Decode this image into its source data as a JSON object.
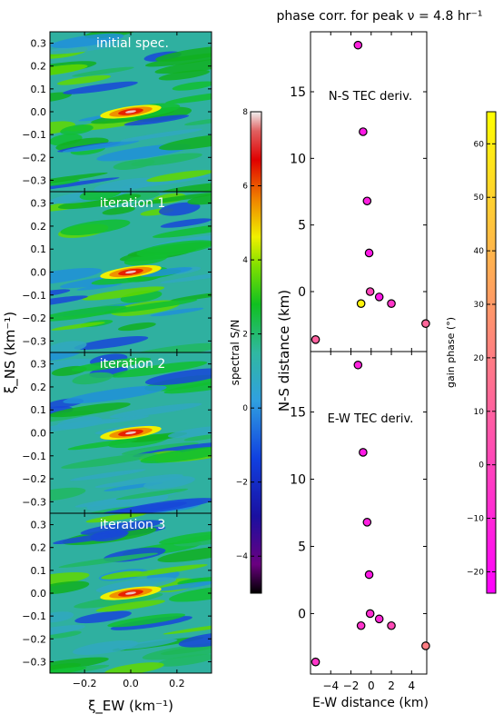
{
  "chart_data": {
    "type": "heatmap",
    "title": "phase corr. for peak ν = 4.8 hr⁻¹",
    "left_panels": {
      "xlabel": "ξ_EW (km⁻¹)",
      "ylabel": "ξ_NS (km⁻¹)",
      "xlim": [
        -0.35,
        0.35
      ],
      "ylim": [
        -0.35,
        0.35
      ],
      "xticks": [
        "−0.2",
        "0.0",
        "0.2"
      ],
      "yticks": [
        "0.3",
        "0.2",
        "0.1",
        "0.0",
        "−0.1",
        "−0.2",
        "−0.3"
      ],
      "panels": [
        {
          "label": "initial spec.",
          "peak_sn": 7.2,
          "peak_xi_ew": 0.0,
          "peak_xi_ns": 0.0
        },
        {
          "label": "iteration 1",
          "peak_sn": 7.2,
          "peak_xi_ew": 0.0,
          "peak_xi_ns": 0.0
        },
        {
          "label": "iteration 2",
          "peak_sn": 7.2,
          "peak_xi_ew": 0.0,
          "peak_xi_ns": 0.0
        },
        {
          "label": "iteration 3",
          "peak_sn": 7.2,
          "peak_xi_ew": 0.0,
          "peak_xi_ns": 0.0
        }
      ]
    },
    "colorbar_sn": {
      "label": "spectral S/N",
      "range": [
        -5,
        8
      ],
      "ticks": [
        "8",
        "6",
        "4",
        "2",
        "0",
        "−2",
        "−4"
      ]
    },
    "right_panels": {
      "xlabel": "E-W distance (km)",
      "ylabel": "N-S distance (km)",
      "xlim": [
        -6,
        5.5
      ],
      "ylim": [
        -4.5,
        19.5
      ],
      "xticks": [
        "−4",
        "−2",
        "0",
        "2",
        "4"
      ],
      "yticks": [
        "15",
        "10",
        "5",
        "0"
      ],
      "panels": [
        {
          "label": "N-S TEC deriv.",
          "points": [
            {
              "x": -1.3,
              "y": 18.5,
              "phase": -12
            },
            {
              "x": -0.8,
              "y": 12.0,
              "phase": -15
            },
            {
              "x": -0.4,
              "y": 6.8,
              "phase": -13
            },
            {
              "x": -0.2,
              "y": 2.9,
              "phase": -15
            },
            {
              "x": -0.1,
              "y": 0.0,
              "phase": 0
            },
            {
              "x": 0.8,
              "y": -0.4,
              "phase": -16
            },
            {
              "x": 2.0,
              "y": -0.9,
              "phase": -5
            },
            {
              "x": -1.0,
              "y": -0.9,
              "phase": 62
            },
            {
              "x": 5.4,
              "y": -2.4,
              "phase": 12
            },
            {
              "x": -5.5,
              "y": -3.6,
              "phase": 10
            }
          ]
        },
        {
          "label": "E-W TEC deriv.",
          "points": [
            {
              "x": -1.3,
              "y": 18.5,
              "phase": -12
            },
            {
              "x": -0.8,
              "y": 12.0,
              "phase": -15
            },
            {
              "x": -0.4,
              "y": 6.8,
              "phase": -13
            },
            {
              "x": -0.2,
              "y": 2.9,
              "phase": -15
            },
            {
              "x": -0.1,
              "y": 0.0,
              "phase": -8
            },
            {
              "x": 0.8,
              "y": -0.4,
              "phase": -10
            },
            {
              "x": 2.0,
              "y": -0.9,
              "phase": 2
            },
            {
              "x": -1.0,
              "y": -0.9,
              "phase": -6
            },
            {
              "x": 5.4,
              "y": -2.4,
              "phase": 20
            },
            {
              "x": -5.5,
              "y": -3.6,
              "phase": -5
            }
          ]
        }
      ]
    },
    "colorbar_phase": {
      "label": "gain phase (°)",
      "range": [
        -24,
        66
      ],
      "ticks": [
        "60",
        "50",
        "40",
        "30",
        "20",
        "10",
        "0",
        "−10",
        "−20"
      ]
    }
  }
}
